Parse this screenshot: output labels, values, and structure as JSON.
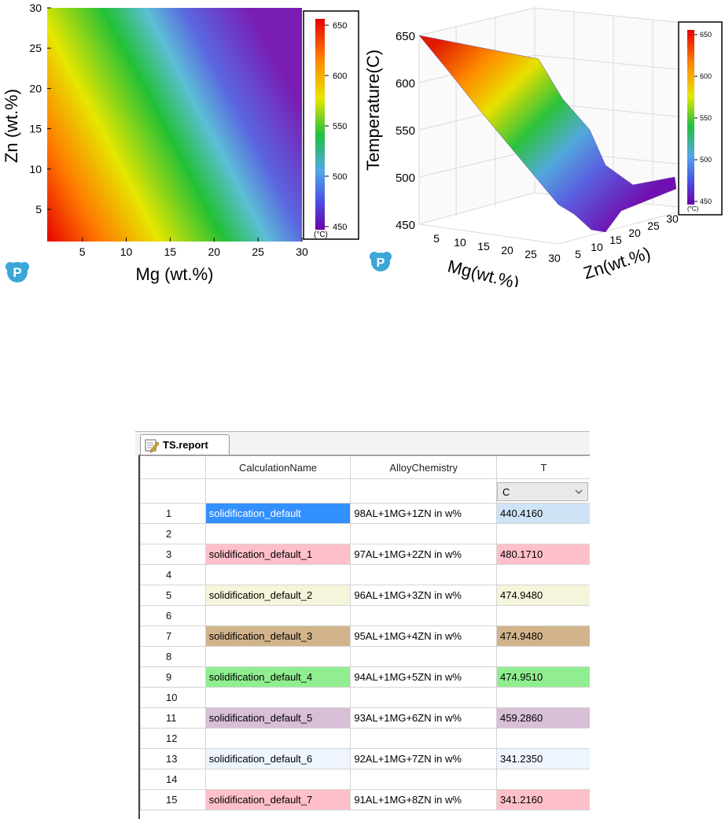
{
  "heatmap": {
    "colorbar": {
      "ticks": [
        "650",
        "600",
        "550",
        "500",
        "450"
      ],
      "unit": "(°C)"
    },
    "chart_data": {
      "type": "heatmap",
      "x_ticks": [
        "5",
        "10",
        "15",
        "20",
        "25",
        "30"
      ],
      "y_ticks": [
        "5",
        "10",
        "15",
        "20",
        "25",
        "30"
      ],
      "xlabel": "Mg (wt.%)",
      "ylabel": "Zn (wt.%)",
      "xlim": [
        1,
        30
      ],
      "ylim": [
        1,
        30
      ],
      "zlim": [
        440,
        655
      ],
      "colorscale": [
        "#6a00a8",
        "#4b53e6",
        "#53a8e6",
        "#20c040",
        "#e6e600",
        "#ff8a00",
        "#e60000"
      ]
    }
  },
  "surface": {
    "colorbar": {
      "ticks": [
        "650",
        "600",
        "550",
        "500",
        "450"
      ],
      "unit": "(°C)"
    },
    "chart_data": {
      "type": "surface",
      "zlabel": "Temperature(C)",
      "xlabel": "Mg(wt.%)",
      "ylabel": "Zn(wt.%)",
      "z_ticks": [
        "650",
        "600",
        "550",
        "500",
        "450"
      ],
      "x_ticks": [
        "5",
        "10",
        "15",
        "20",
        "25",
        "30"
      ],
      "y_ticks": [
        "5",
        "10",
        "15",
        "20",
        "25",
        "30"
      ],
      "zlim": [
        450,
        650
      ]
    }
  },
  "report": {
    "tab_label": "TS.report",
    "columns": [
      "CalculationName",
      "AlloyChemistry",
      "T"
    ],
    "unit": "C",
    "rows": [
      {
        "n": "1",
        "name": "solidification_default",
        "chem": "98AL+1MG+1ZN in w%",
        "t": "440.4160",
        "color": "#cfe3f7",
        "name_color": "#3390ff",
        "name_text": "#ffffff"
      },
      {
        "n": "2",
        "name": "",
        "chem": "",
        "t": "",
        "color": "",
        "name_color": "",
        "name_text": ""
      },
      {
        "n": "3",
        "name": "solidification_default_1",
        "chem": "97AL+1MG+2ZN in w%",
        "t": "480.1710",
        "color": "#ffc0cb",
        "name_color": "#ffc0cb",
        "name_text": "#000"
      },
      {
        "n": "4",
        "name": "",
        "chem": "",
        "t": "",
        "color": "",
        "name_color": "",
        "name_text": ""
      },
      {
        "n": "5",
        "name": "solidification_default_2",
        "chem": "96AL+1MG+3ZN in w%",
        "t": "474.9480",
        "color": "#f5f5dc",
        "name_color": "#f5f5dc",
        "name_text": "#000"
      },
      {
        "n": "6",
        "name": "",
        "chem": "",
        "t": "",
        "color": "",
        "name_color": "",
        "name_text": ""
      },
      {
        "n": "7",
        "name": "solidification_default_3",
        "chem": "95AL+1MG+4ZN in w%",
        "t": "474.9480",
        "color": "#d2b48c",
        "name_color": "#d2b48c",
        "name_text": "#000"
      },
      {
        "n": "8",
        "name": "",
        "chem": "",
        "t": "",
        "color": "",
        "name_color": "",
        "name_text": ""
      },
      {
        "n": "9",
        "name": "solidification_default_4",
        "chem": "94AL+1MG+5ZN in w%",
        "t": "474.9510",
        "color": "#90ee90",
        "name_color": "#90ee90",
        "name_text": "#000"
      },
      {
        "n": "10",
        "name": "",
        "chem": "",
        "t": "",
        "color": "",
        "name_color": "",
        "name_text": ""
      },
      {
        "n": "11",
        "name": "solidification_default_5",
        "chem": "93AL+1MG+6ZN in w%",
        "t": "459.2860",
        "color": "#d8bfd8",
        "name_color": "#d8bfd8",
        "name_text": "#000"
      },
      {
        "n": "12",
        "name": "",
        "chem": "",
        "t": "",
        "color": "",
        "name_color": "",
        "name_text": ""
      },
      {
        "n": "13",
        "name": "solidification_default_6",
        "chem": "92AL+1MG+7ZN in w%",
        "t": "341.2350",
        "color": "#eef5ff",
        "name_color": "#eef5ff",
        "name_text": "#000"
      },
      {
        "n": "14",
        "name": "",
        "chem": "",
        "t": "",
        "color": "",
        "name_color": "",
        "name_text": ""
      },
      {
        "n": "15",
        "name": "solidification_default_7",
        "chem": "91AL+1MG+8ZN in w%",
        "t": "341.2160",
        "color": "#ffc0cb",
        "name_color": "#ffc0cb",
        "name_text": "#000"
      }
    ]
  }
}
